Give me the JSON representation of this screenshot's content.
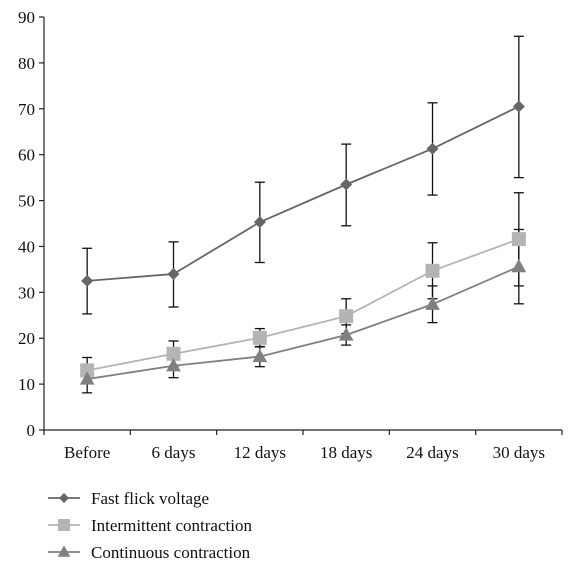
{
  "chart_data": {
    "type": "line",
    "categories": [
      "Before",
      "6 days",
      "12 days",
      "18 days",
      "24 days",
      "30 days"
    ],
    "ylim": [
      0,
      90
    ],
    "yticks": [
      0,
      10,
      20,
      30,
      40,
      50,
      60,
      70,
      80,
      90
    ],
    "grid": false,
    "legend_position": "bottom-left",
    "series": [
      {
        "name": "Fast flick voltage",
        "marker": "diamond",
        "color": "#666666",
        "values": [
          32.5,
          34,
          45.3,
          53.5,
          61.3,
          70.5
        ],
        "error_low": [
          25.3,
          26.8,
          36.5,
          44.5,
          51.2,
          55.0
        ],
        "error_high": [
          39.6,
          41.0,
          54.0,
          62.3,
          71.3,
          85.8
        ]
      },
      {
        "name": "Intermittent contraction",
        "marker": "square",
        "color": "#b4b4b4",
        "values": [
          13,
          16.6,
          20.1,
          24.8,
          34.7,
          41.6
        ],
        "error_low": [
          10.2,
          13.8,
          18.1,
          21.0,
          28.6,
          31.4
        ],
        "error_high": [
          15.8,
          19.4,
          22.1,
          28.6,
          40.8,
          51.7
        ]
      },
      {
        "name": "Continuous contraction",
        "marker": "triangle",
        "color": "#808080",
        "values": [
          11.1,
          14,
          16,
          20.7,
          27.4,
          35.6
        ],
        "error_low": [
          8.1,
          11.4,
          13.8,
          18.5,
          23.4,
          27.5
        ],
        "error_high": [
          14.1,
          16.6,
          18.2,
          22.9,
          31.4,
          43.7
        ]
      }
    ]
  }
}
